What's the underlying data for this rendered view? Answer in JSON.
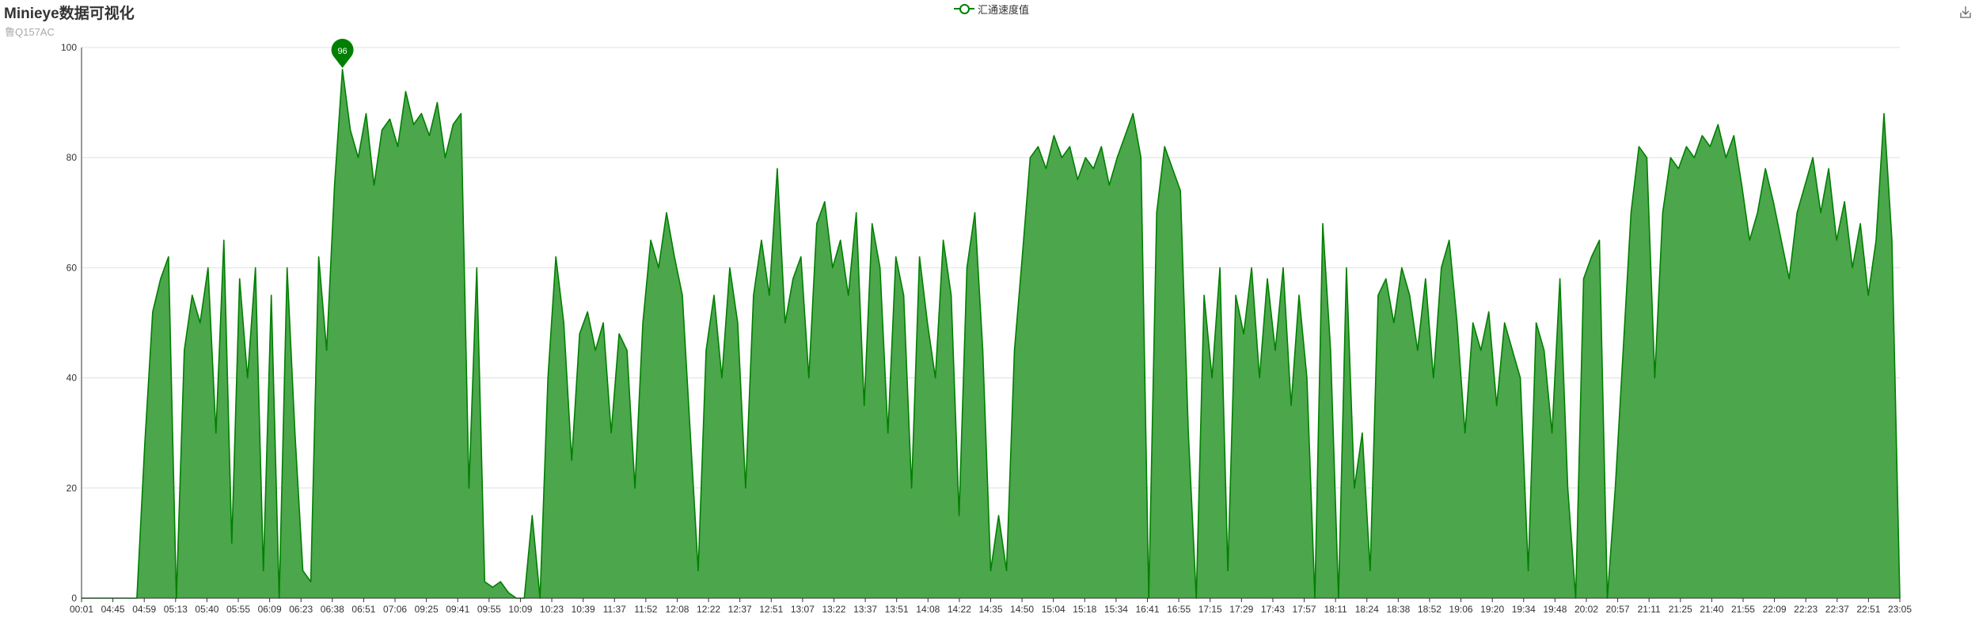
{
  "header": {
    "title": "Minieye数据可视化",
    "subtitle": "鲁Q157AC"
  },
  "legend": {
    "items": [
      "汇通速度值"
    ]
  },
  "toolbox": {
    "icon": "download-icon"
  },
  "colors": {
    "line": "#008000",
    "area": "#4ca64c",
    "grid": "#e0e0e0",
    "axis": "#333333"
  },
  "chart_data": {
    "type": "area",
    "title": "Minieye数据可视化",
    "subtitle": "鲁Q157AC",
    "series_name": "汇通速度值",
    "xlabel": "",
    "ylabel": "",
    "ylim": [
      0,
      100
    ],
    "y_ticks": [
      0,
      20,
      40,
      60,
      80,
      100
    ],
    "grid": true,
    "legend_position": "top-center",
    "x_tick_labels": [
      "00:01",
      "04:45",
      "04:59",
      "05:13",
      "05:40",
      "05:55",
      "06:09",
      "06:23",
      "06:38",
      "06:51",
      "07:06",
      "09:25",
      "09:41",
      "09:55",
      "10:09",
      "10:23",
      "10:39",
      "11:37",
      "11:52",
      "12:08",
      "12:22",
      "12:37",
      "12:51",
      "13:07",
      "13:22",
      "13:37",
      "13:51",
      "14:08",
      "14:22",
      "14:35",
      "14:50",
      "15:04",
      "15:18",
      "15:34",
      "16:41",
      "16:55",
      "17:15",
      "17:29",
      "17:43",
      "17:57",
      "18:11",
      "18:24",
      "18:38",
      "18:52",
      "19:06",
      "19:20",
      "19:34",
      "19:48",
      "20:02",
      "20:57",
      "21:11",
      "21:25",
      "21:40",
      "21:55",
      "22:09",
      "22:23",
      "22:37",
      "22:51",
      "23:05"
    ],
    "mark_point": {
      "label": "96",
      "value": 96,
      "type": "max"
    },
    "profile": [
      {
        "x": "00:01",
        "y": 0
      },
      {
        "x": "00:01",
        "y": 0
      },
      {
        "x": "00:01",
        "y": 0
      },
      {
        "x": "00:01",
        "y": 0
      },
      {
        "x": "00:01",
        "y": 0
      },
      {
        "x": "00:01",
        "y": 0
      },
      {
        "x": "00:01",
        "y": 0
      },
      {
        "x": "00:01",
        "y": 0
      },
      {
        "x": "04:45",
        "y": 28
      },
      {
        "x": "04:45",
        "y": 52
      },
      {
        "x": "04:45",
        "y": 58
      },
      {
        "x": "04:45",
        "y": 62
      },
      {
        "x": "04:45",
        "y": 0
      },
      {
        "x": "04:45",
        "y": 45
      },
      {
        "x": "04:59",
        "y": 55
      },
      {
        "x": "04:59",
        "y": 50
      },
      {
        "x": "04:59",
        "y": 60
      },
      {
        "x": "04:59",
        "y": 30
      },
      {
        "x": "04:59",
        "y": 65
      },
      {
        "x": "04:59",
        "y": 10
      },
      {
        "x": "05:13",
        "y": 58
      },
      {
        "x": "05:13",
        "y": 40
      },
      {
        "x": "05:13",
        "y": 60
      },
      {
        "x": "05:13",
        "y": 5
      },
      {
        "x": "05:13",
        "y": 55
      },
      {
        "x": "05:40",
        "y": 0
      },
      {
        "x": "05:40",
        "y": 60
      },
      {
        "x": "05:40",
        "y": 30
      },
      {
        "x": "05:40",
        "y": 5
      },
      {
        "x": "05:40",
        "y": 3
      },
      {
        "x": "05:55",
        "y": 62
      },
      {
        "x": "05:55",
        "y": 45
      },
      {
        "x": "05:55",
        "y": 75
      },
      {
        "x": "05:55",
        "y": 96
      },
      {
        "x": "06:09",
        "y": 85
      },
      {
        "x": "06:09",
        "y": 80
      },
      {
        "x": "06:09",
        "y": 88
      },
      {
        "x": "06:09",
        "y": 75
      },
      {
        "x": "06:09",
        "y": 85
      },
      {
        "x": "06:23",
        "y": 87
      },
      {
        "x": "06:23",
        "y": 82
      },
      {
        "x": "06:23",
        "y": 92
      },
      {
        "x": "06:23",
        "y": 86
      },
      {
        "x": "06:38",
        "y": 88
      },
      {
        "x": "06:38",
        "y": 84
      },
      {
        "x": "06:38",
        "y": 90
      },
      {
        "x": "06:38",
        "y": 80
      },
      {
        "x": "06:51",
        "y": 86
      },
      {
        "x": "06:51",
        "y": 88
      },
      {
        "x": "06:51",
        "y": 20
      },
      {
        "x": "06:51",
        "y": 60
      },
      {
        "x": "07:06",
        "y": 3
      },
      {
        "x": "07:06",
        "y": 2
      },
      {
        "x": "07:06",
        "y": 3
      },
      {
        "x": "07:06",
        "y": 1
      },
      {
        "x": "07:06",
        "y": 0
      },
      {
        "x": "09:25",
        "y": 0
      },
      {
        "x": "09:25",
        "y": 15
      },
      {
        "x": "09:25",
        "y": 0
      },
      {
        "x": "09:25",
        "y": 40
      },
      {
        "x": "09:41",
        "y": 62
      },
      {
        "x": "09:41",
        "y": 50
      },
      {
        "x": "09:41",
        "y": 25
      },
      {
        "x": "09:41",
        "y": 48
      },
      {
        "x": "09:55",
        "y": 52
      },
      {
        "x": "09:55",
        "y": 45
      },
      {
        "x": "09:55",
        "y": 50
      },
      {
        "x": "09:55",
        "y": 30
      },
      {
        "x": "10:09",
        "y": 48
      },
      {
        "x": "10:09",
        "y": 45
      },
      {
        "x": "10:09",
        "y": 20
      },
      {
        "x": "10:23",
        "y": 50
      },
      {
        "x": "10:23",
        "y": 65
      },
      {
        "x": "10:23",
        "y": 60
      },
      {
        "x": "10:23",
        "y": 70
      },
      {
        "x": "10:39",
        "y": 62
      },
      {
        "x": "10:39",
        "y": 55
      },
      {
        "x": "10:39",
        "y": 30
      },
      {
        "x": "11:37",
        "y": 5
      },
      {
        "x": "11:37",
        "y": 45
      },
      {
        "x": "11:37",
        "y": 55
      },
      {
        "x": "11:37",
        "y": 40
      },
      {
        "x": "11:52",
        "y": 60
      },
      {
        "x": "11:52",
        "y": 50
      },
      {
        "x": "11:52",
        "y": 20
      },
      {
        "x": "11:52",
        "y": 55
      },
      {
        "x": "12:08",
        "y": 65
      },
      {
        "x": "12:08",
        "y": 55
      },
      {
        "x": "12:08",
        "y": 78
      },
      {
        "x": "12:08",
        "y": 50
      },
      {
        "x": "12:22",
        "y": 58
      },
      {
        "x": "12:22",
        "y": 62
      },
      {
        "x": "12:22",
        "y": 40
      },
      {
        "x": "12:37",
        "y": 68
      },
      {
        "x": "12:37",
        "y": 72
      },
      {
        "x": "12:37",
        "y": 60
      },
      {
        "x": "12:51",
        "y": 65
      },
      {
        "x": "12:51",
        "y": 55
      },
      {
        "x": "12:51",
        "y": 70
      },
      {
        "x": "12:51",
        "y": 35
      },
      {
        "x": "13:07",
        "y": 68
      },
      {
        "x": "13:07",
        "y": 60
      },
      {
        "x": "13:07",
        "y": 30
      },
      {
        "x": "13:22",
        "y": 62
      },
      {
        "x": "13:22",
        "y": 55
      },
      {
        "x": "13:22",
        "y": 20
      },
      {
        "x": "13:37",
        "y": 62
      },
      {
        "x": "13:37",
        "y": 50
      },
      {
        "x": "13:37",
        "y": 40
      },
      {
        "x": "13:51",
        "y": 65
      },
      {
        "x": "13:51",
        "y": 55
      },
      {
        "x": "13:51",
        "y": 15
      },
      {
        "x": "14:08",
        "y": 60
      },
      {
        "x": "14:08",
        "y": 70
      },
      {
        "x": "14:08",
        "y": 45
      },
      {
        "x": "14:08",
        "y": 5
      },
      {
        "x": "14:22",
        "y": 15
      },
      {
        "x": "14:22",
        "y": 5
      },
      {
        "x": "14:22",
        "y": 45
      },
      {
        "x": "14:22",
        "y": 62
      },
      {
        "x": "14:35",
        "y": 80
      },
      {
        "x": "14:35",
        "y": 82
      },
      {
        "x": "14:35",
        "y": 78
      },
      {
        "x": "14:35",
        "y": 84
      },
      {
        "x": "14:50",
        "y": 80
      },
      {
        "x": "14:50",
        "y": 82
      },
      {
        "x": "14:50",
        "y": 76
      },
      {
        "x": "14:50",
        "y": 80
      },
      {
        "x": "15:04",
        "y": 78
      },
      {
        "x": "15:04",
        "y": 82
      },
      {
        "x": "15:04",
        "y": 75
      },
      {
        "x": "15:04",
        "y": 80
      },
      {
        "x": "15:18",
        "y": 84
      },
      {
        "x": "15:18",
        "y": 88
      },
      {
        "x": "15:18",
        "y": 80
      },
      {
        "x": "15:18",
        "y": 0
      },
      {
        "x": "15:34",
        "y": 70
      },
      {
        "x": "15:34",
        "y": 82
      },
      {
        "x": "15:34",
        "y": 78
      },
      {
        "x": "16:41",
        "y": 74
      },
      {
        "x": "16:41",
        "y": 30
      },
      {
        "x": "16:41",
        "y": 0
      },
      {
        "x": "16:55",
        "y": 55
      },
      {
        "x": "16:55",
        "y": 40
      },
      {
        "x": "16:55",
        "y": 60
      },
      {
        "x": "16:55",
        "y": 5
      },
      {
        "x": "17:15",
        "y": 55
      },
      {
        "x": "17:15",
        "y": 48
      },
      {
        "x": "17:15",
        "y": 60
      },
      {
        "x": "17:15",
        "y": 40
      },
      {
        "x": "17:29",
        "y": 58
      },
      {
        "x": "17:29",
        "y": 45
      },
      {
        "x": "17:29",
        "y": 60
      },
      {
        "x": "17:29",
        "y": 35
      },
      {
        "x": "17:43",
        "y": 55
      },
      {
        "x": "17:43",
        "y": 40
      },
      {
        "x": "17:43",
        "y": 0
      },
      {
        "x": "17:57",
        "y": 68
      },
      {
        "x": "17:57",
        "y": 45
      },
      {
        "x": "17:57",
        "y": 0
      },
      {
        "x": "18:11",
        "y": 60
      },
      {
        "x": "18:11",
        "y": 20
      },
      {
        "x": "18:11",
        "y": 30
      },
      {
        "x": "18:11",
        "y": 5
      },
      {
        "x": "18:24",
        "y": 55
      },
      {
        "x": "18:24",
        "y": 58
      },
      {
        "x": "18:24",
        "y": 50
      },
      {
        "x": "18:24",
        "y": 60
      },
      {
        "x": "18:38",
        "y": 55
      },
      {
        "x": "18:38",
        "y": 45
      },
      {
        "x": "18:38",
        "y": 58
      },
      {
        "x": "18:38",
        "y": 40
      },
      {
        "x": "18:52",
        "y": 60
      },
      {
        "x": "18:52",
        "y": 65
      },
      {
        "x": "18:52",
        "y": 50
      },
      {
        "x": "18:52",
        "y": 30
      },
      {
        "x": "19:06",
        "y": 50
      },
      {
        "x": "19:06",
        "y": 45
      },
      {
        "x": "19:06",
        "y": 52
      },
      {
        "x": "19:06",
        "y": 35
      },
      {
        "x": "19:20",
        "y": 50
      },
      {
        "x": "19:20",
        "y": 45
      },
      {
        "x": "19:20",
        "y": 40
      },
      {
        "x": "19:20",
        "y": 5
      },
      {
        "x": "19:34",
        "y": 50
      },
      {
        "x": "19:34",
        "y": 45
      },
      {
        "x": "19:34",
        "y": 30
      },
      {
        "x": "19:48",
        "y": 58
      },
      {
        "x": "19:48",
        "y": 20
      },
      {
        "x": "19:48",
        "y": 0
      },
      {
        "x": "20:02",
        "y": 58
      },
      {
        "x": "20:02",
        "y": 62
      },
      {
        "x": "20:02",
        "y": 65
      },
      {
        "x": "20:02",
        "y": 0
      },
      {
        "x": "20:57",
        "y": 20
      },
      {
        "x": "20:57",
        "y": 45
      },
      {
        "x": "20:57",
        "y": 70
      },
      {
        "x": "20:57",
        "y": 82
      },
      {
        "x": "21:11",
        "y": 80
      },
      {
        "x": "21:11",
        "y": 40
      },
      {
        "x": "21:11",
        "y": 70
      },
      {
        "x": "21:11",
        "y": 80
      },
      {
        "x": "21:25",
        "y": 78
      },
      {
        "x": "21:25",
        "y": 82
      },
      {
        "x": "21:25",
        "y": 80
      },
      {
        "x": "21:25",
        "y": 84
      },
      {
        "x": "21:40",
        "y": 82
      },
      {
        "x": "21:40",
        "y": 86
      },
      {
        "x": "21:40",
        "y": 80
      },
      {
        "x": "21:40",
        "y": 84
      },
      {
        "x": "21:55",
        "y": 75
      },
      {
        "x": "21:55",
        "y": 65
      },
      {
        "x": "21:55",
        "y": 70
      },
      {
        "x": "21:55",
        "y": 78
      },
      {
        "x": "22:09",
        "y": 72
      },
      {
        "x": "22:09",
        "y": 65
      },
      {
        "x": "22:09",
        "y": 58
      },
      {
        "x": "22:09",
        "y": 70
      },
      {
        "x": "22:23",
        "y": 75
      },
      {
        "x": "22:23",
        "y": 80
      },
      {
        "x": "22:23",
        "y": 70
      },
      {
        "x": "22:23",
        "y": 78
      },
      {
        "x": "22:37",
        "y": 65
      },
      {
        "x": "22:37",
        "y": 72
      },
      {
        "x": "22:37",
        "y": 60
      },
      {
        "x": "22:51",
        "y": 68
      },
      {
        "x": "22:51",
        "y": 55
      },
      {
        "x": "22:51",
        "y": 65
      },
      {
        "x": "23:05",
        "y": 88
      },
      {
        "x": "23:05",
        "y": 65
      },
      {
        "x": "23:05",
        "y": 0
      }
    ]
  }
}
